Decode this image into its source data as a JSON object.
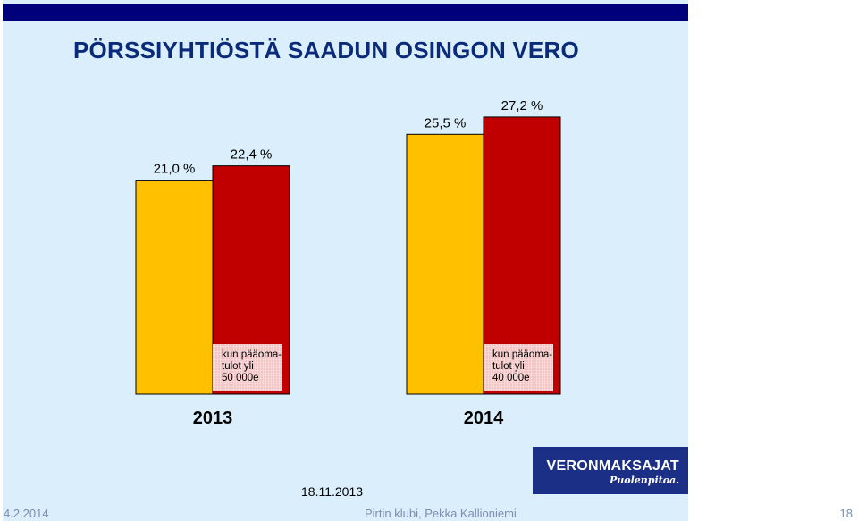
{
  "slide": {
    "title": "PÖRSSIYHTIÖSTÄ SAADUN OSINGON VERO",
    "date": "18.11.2013"
  },
  "logo": {
    "main": "VERONMAKSAJAT",
    "tagline": "Puolenpitoa."
  },
  "footer": {
    "date": "4.2.2014",
    "center": "Pirtin klubi, Pekka Kallioniemi",
    "page": "18"
  },
  "colors": {
    "slide_bg": "#dbeefb",
    "topbar": "#00007a",
    "title": "#0a2a7a",
    "bar_yellow": "#ffc000",
    "bar_red": "#c00000",
    "note_box": "#f3c4c4",
    "logo_bg": "#1c2f86"
  },
  "chart_data": {
    "type": "bar",
    "categories": [
      "2013",
      "2014"
    ],
    "series": [
      {
        "values": [
          21.0,
          25.5
        ],
        "labels": [
          "21,0 %",
          "25,5 %"
        ],
        "color": "#ffc000"
      },
      {
        "values": [
          22.4,
          27.2
        ],
        "labels": [
          "22,4 %",
          "27,2 %"
        ],
        "color": "#c00000"
      }
    ],
    "annotations": [
      [
        "kun pääoma-",
        "tulot yli",
        "50 000e"
      ],
      [
        "kun pääoma-",
        "tulot yli",
        "40 000e"
      ]
    ],
    "ylim": [
      0,
      30
    ],
    "grid": false,
    "xlabel": "",
    "ylabel": ""
  }
}
